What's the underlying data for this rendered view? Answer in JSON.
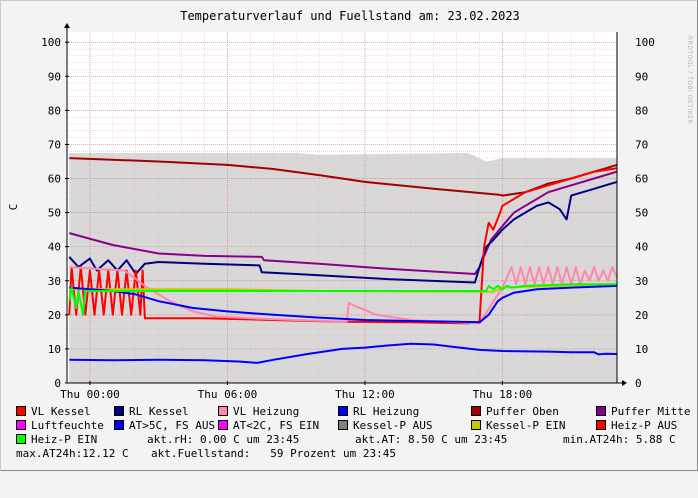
{
  "chart_data": {
    "type": "line",
    "title": "Temperaturverlauf und Fuellstand am: 23.02.2023",
    "ylabel": "C",
    "watermark": "RRDTOOL / TOBI OETIKER",
    "ylim": [
      0,
      103
    ],
    "xlim": [
      -1.0,
      23.0
    ],
    "grid": true,
    "yticks": [
      "0",
      "10",
      "20",
      "30",
      "40",
      "50",
      "60",
      "70",
      "80",
      "90",
      "100"
    ],
    "xticks": [
      {
        "label": "Thu 00:00",
        "hour": 0
      },
      {
        "label": "Thu 06:00",
        "hour": 6
      },
      {
        "label": "Thu 12:00",
        "hour": 12
      },
      {
        "label": "Thu 18:00",
        "hour": 18
      }
    ],
    "series": [
      {
        "name": "Luftfeuchte",
        "color": "#d8d8d8",
        "kind": "area",
        "x": [
          -0.9,
          9.0,
          10.0,
          16.5,
          17.0,
          17.3,
          18.0,
          23.0
        ],
        "y": [
          67.5,
          67.5,
          67.0,
          67.5,
          66.0,
          65.0,
          66.0,
          66.0
        ]
      },
      {
        "name": "Puffer Oben",
        "color": "#a00000",
        "x": [
          -0.9,
          3,
          6,
          8,
          10,
          12,
          15,
          17.9,
          18.0,
          19,
          20,
          21,
          22,
          23
        ],
        "y": [
          66,
          65,
          64,
          62.8,
          61,
          59,
          57,
          55.2,
          55,
          56,
          58.5,
          60,
          62,
          64
        ]
      },
      {
        "name": "Puffer Mitte",
        "color": "#880088",
        "x": [
          -0.9,
          1,
          3,
          5,
          7.5,
          7.6,
          10,
          13,
          16.8,
          17.0,
          17.5,
          18.0,
          18.5,
          19,
          19.5,
          20,
          21,
          22,
          23
        ],
        "y": [
          44,
          40.5,
          38,
          37.3,
          37,
          36,
          35,
          33.5,
          32,
          34,
          42,
          46,
          50,
          52,
          54,
          56,
          58,
          60,
          62
        ]
      },
      {
        "name": "RL Kessel",
        "color": "#000080",
        "x": [
          -0.9,
          -0.5,
          0,
          0.3,
          0.8,
          1.2,
          1.6,
          2.0,
          2.4,
          3.0,
          5,
          7.4,
          7.5,
          9,
          13,
          16.8,
          17.0,
          17.3,
          17.6,
          18.0,
          18.5,
          19,
          19.5,
          20,
          20.5,
          20.8,
          21,
          21.5,
          22,
          22.5,
          23
        ],
        "y": [
          37,
          34,
          36.5,
          33,
          36,
          33,
          36,
          32,
          35,
          35.5,
          35,
          34.5,
          32.5,
          32,
          30.5,
          29.5,
          34,
          40,
          42,
          45,
          48,
          50,
          52,
          53,
          51,
          48,
          55,
          56,
          57,
          58,
          59
        ]
      },
      {
        "name": "VL Kessel",
        "color": "#ff0000",
        "x": [
          -0.9,
          -0.8,
          -0.6,
          -0.4,
          -0.2,
          0.0,
          0.2,
          0.4,
          0.6,
          0.8,
          1.0,
          1.2,
          1.4,
          1.6,
          1.8,
          2.0,
          2.2,
          2.3,
          2.4,
          5,
          8,
          11,
          14,
          16.5,
          17.0,
          17.2,
          17.4,
          17.6,
          17.9,
          18.0,
          18.5,
          19.0,
          19.5,
          20,
          20.5,
          21,
          22,
          23
        ],
        "y": [
          20,
          34,
          20,
          34,
          20,
          33,
          20,
          33,
          20,
          33,
          20,
          33,
          20,
          33,
          20,
          33,
          20,
          33,
          19,
          19,
          18.5,
          18,
          17.8,
          17.5,
          18,
          40,
          47,
          45,
          50,
          52,
          54,
          56,
          57,
          58,
          59,
          60,
          62,
          63
        ]
      },
      {
        "name": "VL Heizung",
        "color": "#ff88aa",
        "x": [
          -0.9,
          1.5,
          2.5,
          3.5,
          4.5,
          5.5,
          7,
          9,
          11.2,
          11.3,
          11.6,
          12.5,
          14,
          17.0,
          18.0,
          18.4,
          18.6,
          18.8,
          19.0,
          19.2,
          19.4,
          19.6,
          19.8,
          20.0,
          20.2,
          20.4,
          20.6,
          20.8,
          21.0,
          21.2,
          21.4,
          21.6,
          21.8,
          22.0,
          22.2,
          22.4,
          22.6,
          22.8,
          23.0
        ],
        "y": [
          34,
          33,
          28,
          24,
          21,
          19.5,
          19,
          18.5,
          18,
          23.5,
          22.5,
          20,
          18.5,
          17.5,
          28,
          34,
          29,
          34,
          29,
          34,
          29,
          34,
          29,
          34,
          29,
          34,
          29,
          34,
          29,
          34,
          29,
          33,
          30,
          34,
          30,
          33,
          30,
          34,
          31
        ]
      },
      {
        "name": "Kessel-P EIN",
        "color": "#c8c800",
        "x": [
          -0.9,
          6,
          10,
          17.6,
          18.0,
          23
        ],
        "y": [
          27.5,
          27.5,
          27,
          26.8,
          28,
          29
        ]
      },
      {
        "name": "RL Heizung",
        "color": "#0000ff",
        "x": [
          -0.9,
          1,
          2,
          3,
          4.5,
          6,
          8,
          10,
          12,
          14,
          16,
          17.0,
          17.4,
          17.8,
          18.0,
          18.5,
          19.5,
          21,
          23
        ],
        "y": [
          28,
          27,
          26,
          24,
          22,
          21,
          20,
          19.2,
          18.5,
          18.2,
          18,
          17.8,
          20,
          24,
          25,
          26.5,
          27.5,
          28,
          28.5
        ]
      },
      {
        "name": "Heiz-P EIN",
        "color": "#00ff00",
        "x": [
          -0.9,
          -0.8,
          -0.6,
          -0.5,
          -0.3,
          -0.2,
          0.0,
          17.3,
          17.4,
          17.6,
          17.8,
          18.0,
          18.2,
          18.4,
          19,
          21,
          23
        ],
        "y": [
          24,
          28,
          22,
          27,
          20,
          27,
          27,
          27,
          28.5,
          27.5,
          28.5,
          27.5,
          28.5,
          28,
          28.5,
          29,
          29
        ]
      },
      {
        "name": "AT>5C, FS AUS",
        "color": "#0000ff",
        "x": [
          -0.9,
          1,
          3,
          5,
          6.5,
          7.3,
          8,
          9.5,
          10.5,
          11,
          12,
          13,
          14,
          15,
          16,
          17,
          18,
          20,
          21,
          22,
          22.2,
          22.5,
          23
        ],
        "y": [
          6.8,
          6.7,
          6.8,
          6.7,
          6.3,
          5.9,
          6.8,
          8.5,
          9.5,
          10,
          10.4,
          11,
          11.5,
          11.3,
          10.5,
          9.7,
          9.4,
          9.2,
          9,
          9,
          8.4,
          8.6,
          8.5
        ]
      }
    ],
    "legend": [
      {
        "label": "VL Kessel",
        "color": "#ff0000"
      },
      {
        "label": "RL Kessel",
        "color": "#000080"
      },
      {
        "label": "VL Heizung",
        "color": "#ff88aa"
      },
      {
        "label": "RL Heizung",
        "color": "#0000ff"
      },
      {
        "label": "Puffer Oben",
        "color": "#a00000"
      },
      {
        "label": "Puffer Mitte",
        "color": "#880088"
      },
      {
        "label": "Luftfeuchte",
        "color": "#ff00ff"
      },
      {
        "label": "AT>5C, FS AUS",
        "color": "#0000ff"
      },
      {
        "label": "AT<2C, FS EIN",
        "color": "#ff00ff"
      },
      {
        "label": "Kessel-P AUS",
        "color": "#808080"
      },
      {
        "label": "Kessel-P EIN",
        "color": "#c8c800"
      },
      {
        "label": "Heiz-P AUS",
        "color": "#ff0000"
      },
      {
        "label": "Heiz-P EIN",
        "color": "#00ff00"
      }
    ],
    "stats": {
      "rh": "akt.rH: 0.00 C um 23:45",
      "at": "akt.AT: 8.50 C um 23:45",
      "min24": "min.AT24h: 5.88 C",
      "max24": "max.AT24h:12.12 C",
      "fill": "akt.Fuellstand:   59 Prozent um 23:45"
    }
  }
}
